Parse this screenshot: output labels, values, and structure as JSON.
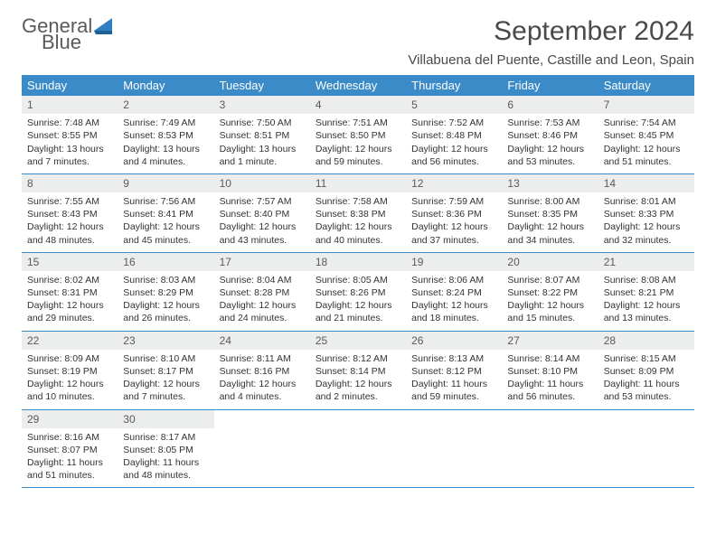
{
  "logo": {
    "line1": "General",
    "line2": "Blue"
  },
  "title": "September 2024",
  "location": "Villabuena del Puente, Castille and Leon, Spain",
  "colors": {
    "header_bg": "#3b8bc8",
    "header_text": "#ffffff",
    "daynum_bg": "#eceded",
    "daynum_text": "#5a5a5a",
    "body_text": "#333333",
    "page_bg": "#ffffff",
    "logo_gray": "#5a5a5a",
    "logo_blue": "#2f7fc1"
  },
  "dayNames": [
    "Sunday",
    "Monday",
    "Tuesday",
    "Wednesday",
    "Thursday",
    "Friday",
    "Saturday"
  ],
  "weeks": [
    [
      {
        "num": "1",
        "sunrise": "Sunrise: 7:48 AM",
        "sunset": "Sunset: 8:55 PM",
        "daylight": "Daylight: 13 hours and 7 minutes."
      },
      {
        "num": "2",
        "sunrise": "Sunrise: 7:49 AM",
        "sunset": "Sunset: 8:53 PM",
        "daylight": "Daylight: 13 hours and 4 minutes."
      },
      {
        "num": "3",
        "sunrise": "Sunrise: 7:50 AM",
        "sunset": "Sunset: 8:51 PM",
        "daylight": "Daylight: 13 hours and 1 minute."
      },
      {
        "num": "4",
        "sunrise": "Sunrise: 7:51 AM",
        "sunset": "Sunset: 8:50 PM",
        "daylight": "Daylight: 12 hours and 59 minutes."
      },
      {
        "num": "5",
        "sunrise": "Sunrise: 7:52 AM",
        "sunset": "Sunset: 8:48 PM",
        "daylight": "Daylight: 12 hours and 56 minutes."
      },
      {
        "num": "6",
        "sunrise": "Sunrise: 7:53 AM",
        "sunset": "Sunset: 8:46 PM",
        "daylight": "Daylight: 12 hours and 53 minutes."
      },
      {
        "num": "7",
        "sunrise": "Sunrise: 7:54 AM",
        "sunset": "Sunset: 8:45 PM",
        "daylight": "Daylight: 12 hours and 51 minutes."
      }
    ],
    [
      {
        "num": "8",
        "sunrise": "Sunrise: 7:55 AM",
        "sunset": "Sunset: 8:43 PM",
        "daylight": "Daylight: 12 hours and 48 minutes."
      },
      {
        "num": "9",
        "sunrise": "Sunrise: 7:56 AM",
        "sunset": "Sunset: 8:41 PM",
        "daylight": "Daylight: 12 hours and 45 minutes."
      },
      {
        "num": "10",
        "sunrise": "Sunrise: 7:57 AM",
        "sunset": "Sunset: 8:40 PM",
        "daylight": "Daylight: 12 hours and 43 minutes."
      },
      {
        "num": "11",
        "sunrise": "Sunrise: 7:58 AM",
        "sunset": "Sunset: 8:38 PM",
        "daylight": "Daylight: 12 hours and 40 minutes."
      },
      {
        "num": "12",
        "sunrise": "Sunrise: 7:59 AM",
        "sunset": "Sunset: 8:36 PM",
        "daylight": "Daylight: 12 hours and 37 minutes."
      },
      {
        "num": "13",
        "sunrise": "Sunrise: 8:00 AM",
        "sunset": "Sunset: 8:35 PM",
        "daylight": "Daylight: 12 hours and 34 minutes."
      },
      {
        "num": "14",
        "sunrise": "Sunrise: 8:01 AM",
        "sunset": "Sunset: 8:33 PM",
        "daylight": "Daylight: 12 hours and 32 minutes."
      }
    ],
    [
      {
        "num": "15",
        "sunrise": "Sunrise: 8:02 AM",
        "sunset": "Sunset: 8:31 PM",
        "daylight": "Daylight: 12 hours and 29 minutes."
      },
      {
        "num": "16",
        "sunrise": "Sunrise: 8:03 AM",
        "sunset": "Sunset: 8:29 PM",
        "daylight": "Daylight: 12 hours and 26 minutes."
      },
      {
        "num": "17",
        "sunrise": "Sunrise: 8:04 AM",
        "sunset": "Sunset: 8:28 PM",
        "daylight": "Daylight: 12 hours and 24 minutes."
      },
      {
        "num": "18",
        "sunrise": "Sunrise: 8:05 AM",
        "sunset": "Sunset: 8:26 PM",
        "daylight": "Daylight: 12 hours and 21 minutes."
      },
      {
        "num": "19",
        "sunrise": "Sunrise: 8:06 AM",
        "sunset": "Sunset: 8:24 PM",
        "daylight": "Daylight: 12 hours and 18 minutes."
      },
      {
        "num": "20",
        "sunrise": "Sunrise: 8:07 AM",
        "sunset": "Sunset: 8:22 PM",
        "daylight": "Daylight: 12 hours and 15 minutes."
      },
      {
        "num": "21",
        "sunrise": "Sunrise: 8:08 AM",
        "sunset": "Sunset: 8:21 PM",
        "daylight": "Daylight: 12 hours and 13 minutes."
      }
    ],
    [
      {
        "num": "22",
        "sunrise": "Sunrise: 8:09 AM",
        "sunset": "Sunset: 8:19 PM",
        "daylight": "Daylight: 12 hours and 10 minutes."
      },
      {
        "num": "23",
        "sunrise": "Sunrise: 8:10 AM",
        "sunset": "Sunset: 8:17 PM",
        "daylight": "Daylight: 12 hours and 7 minutes."
      },
      {
        "num": "24",
        "sunrise": "Sunrise: 8:11 AM",
        "sunset": "Sunset: 8:16 PM",
        "daylight": "Daylight: 12 hours and 4 minutes."
      },
      {
        "num": "25",
        "sunrise": "Sunrise: 8:12 AM",
        "sunset": "Sunset: 8:14 PM",
        "daylight": "Daylight: 12 hours and 2 minutes."
      },
      {
        "num": "26",
        "sunrise": "Sunrise: 8:13 AM",
        "sunset": "Sunset: 8:12 PM",
        "daylight": "Daylight: 11 hours and 59 minutes."
      },
      {
        "num": "27",
        "sunrise": "Sunrise: 8:14 AM",
        "sunset": "Sunset: 8:10 PM",
        "daylight": "Daylight: 11 hours and 56 minutes."
      },
      {
        "num": "28",
        "sunrise": "Sunrise: 8:15 AM",
        "sunset": "Sunset: 8:09 PM",
        "daylight": "Daylight: 11 hours and 53 minutes."
      }
    ],
    [
      {
        "num": "29",
        "sunrise": "Sunrise: 8:16 AM",
        "sunset": "Sunset: 8:07 PM",
        "daylight": "Daylight: 11 hours and 51 minutes."
      },
      {
        "num": "30",
        "sunrise": "Sunrise: 8:17 AM",
        "sunset": "Sunset: 8:05 PM",
        "daylight": "Daylight: 11 hours and 48 minutes."
      },
      {
        "empty": true
      },
      {
        "empty": true
      },
      {
        "empty": true
      },
      {
        "empty": true
      },
      {
        "empty": true
      }
    ]
  ]
}
